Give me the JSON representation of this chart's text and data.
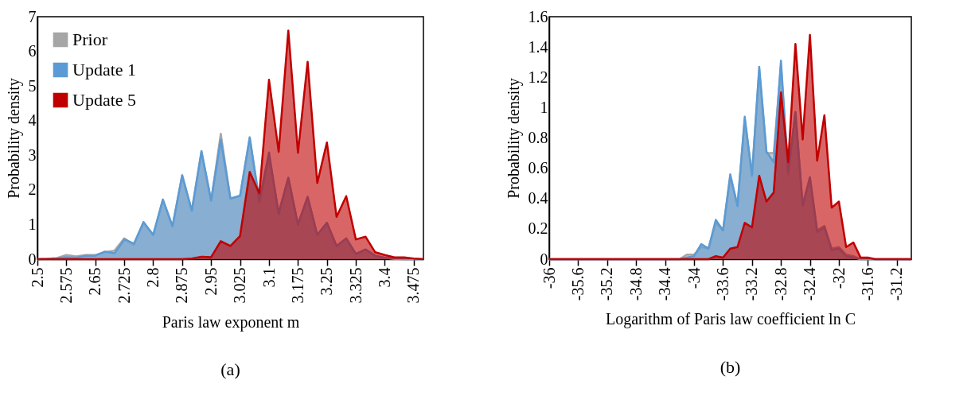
{
  "chart_data": [
    {
      "type": "area",
      "xlabel": "Paris law exponent m",
      "ylabel": "Probability density",
      "annotations": [
        "(a)"
      ],
      "x": [
        2.5,
        2.525,
        2.55,
        2.575,
        2.6,
        2.625,
        2.65,
        2.675,
        2.7,
        2.725,
        2.75,
        2.775,
        2.8,
        2.825,
        2.85,
        2.875,
        2.9,
        2.925,
        2.95,
        2.975,
        3,
        3.025,
        3.05,
        3.075,
        3.1,
        3.125,
        3.15,
        3.175,
        3.2,
        3.225,
        3.25,
        3.275,
        3.3,
        3.325,
        3.35,
        3.375,
        3.4,
        3.425,
        3.45,
        3.475,
        3.5
      ],
      "series": [
        {
          "name": "Prior",
          "color": "#a6a6a6",
          "values": [
            0,
            0.01,
            0.03,
            0.12,
            0.08,
            0.12,
            0.12,
            0.2,
            0.25,
            0.6,
            0.42,
            1.07,
            0.7,
            1.72,
            0.95,
            2.42,
            1.4,
            3.1,
            1.68,
            3.62,
            1.75,
            1.83,
            3.5,
            1.62,
            2.95,
            1.35,
            2.35,
            1.0,
            1.8,
            0.7,
            1.05,
            0.38,
            0.6,
            0.15,
            0.28,
            0.1,
            0.04,
            0.01,
            0,
            0,
            0
          ]
        },
        {
          "name": "Update 1",
          "color": "#5b9bd5",
          "values": [
            0,
            0.01,
            0.03,
            0.06,
            0.04,
            0.1,
            0.1,
            0.22,
            0.17,
            0.57,
            0.45,
            1.07,
            0.7,
            1.72,
            0.95,
            2.42,
            1.4,
            3.12,
            1.7,
            3.45,
            1.75,
            1.83,
            3.52,
            1.7,
            3.08,
            1.3,
            2.35,
            1.0,
            1.8,
            0.7,
            1.05,
            0.38,
            0.6,
            0.15,
            0.28,
            0.1,
            0.04,
            0.01,
            0,
            0,
            0
          ]
        },
        {
          "name": "Update 5",
          "color": "#c00000",
          "values": [
            0,
            0,
            0,
            0,
            0,
            0,
            0,
            0,
            0,
            0,
            0,
            0,
            0,
            0,
            0,
            0,
            0.02,
            0.07,
            0.06,
            0.52,
            0.38,
            0.67,
            2.52,
            1.9,
            5.18,
            3.1,
            6.6,
            3.07,
            5.7,
            2.2,
            3.37,
            1.22,
            1.82,
            0.57,
            0.65,
            0.2,
            0.12,
            0.05,
            0.05,
            0.02,
            0
          ]
        }
      ],
      "xlim": [
        2.5,
        3.5
      ],
      "xticks": [
        2.5,
        2.575,
        2.65,
        2.725,
        2.8,
        2.875,
        2.95,
        3.025,
        3.1,
        3.175,
        3.25,
        3.325,
        3.4,
        3.475
      ],
      "ylim": [
        0,
        7
      ],
      "yticks": [
        0,
        1,
        2,
        3,
        4,
        5,
        6,
        7
      ],
      "legend": "top left"
    },
    {
      "type": "area",
      "xlabel": "Logarithm of Paris law coefficient ln C",
      "ylabel": "Probability density",
      "annotations": [
        "(b)"
      ],
      "x": [
        -36,
        -35.9,
        -35.8,
        -35.7,
        -35.6,
        -35.5,
        -35.4,
        -35.3,
        -35.2,
        -35.1,
        -35,
        -34.9,
        -34.8,
        -34.7,
        -34.6,
        -34.5,
        -34.4,
        -34.3,
        -34.2,
        -34.1,
        -34,
        -33.9,
        -33.8,
        -33.7,
        -33.6,
        -33.5,
        -33.4,
        -33.3,
        -33.2,
        -33.1,
        -33,
        -32.9,
        -32.8,
        -32.7,
        -32.6,
        -32.5,
        -32.4,
        -32.3,
        -32.2,
        -32.1,
        -32,
        -31.9,
        -31.8,
        -31.7,
        -31.6,
        -31.5,
        -31.4,
        -31.3,
        -31.2,
        -31.1,
        -31
      ],
      "series": [
        {
          "name": "Prior",
          "color": "#a6a6a6",
          "values": [
            0,
            0,
            0,
            0,
            0,
            0,
            0,
            0,
            0,
            0,
            0,
            0,
            0,
            0,
            0,
            0,
            0,
            0,
            0,
            0.03,
            0.03,
            0.08,
            0.07,
            0.24,
            0.19,
            0.54,
            0.36,
            0.92,
            0.56,
            1.25,
            0.7,
            0.7,
            1.28,
            0.56,
            0.97,
            0.36,
            0.54,
            0.19,
            0.22,
            0.07,
            0.08,
            0.03,
            0.02,
            0,
            0,
            0,
            0,
            0,
            0,
            0,
            0
          ]
        },
        {
          "name": "Update 1",
          "color": "#5b9bd5",
          "values": [
            0,
            0,
            0,
            0,
            0,
            0,
            0,
            0,
            0,
            0,
            0,
            0,
            0,
            0,
            0,
            0,
            0,
            0,
            0,
            0.01,
            0.02,
            0.1,
            0.07,
            0.26,
            0.19,
            0.56,
            0.35,
            0.94,
            0.55,
            1.27,
            0.71,
            0.64,
            1.31,
            0.57,
            0.97,
            0.35,
            0.54,
            0.18,
            0.21,
            0.06,
            0.07,
            0.02,
            0.01,
            0,
            0,
            0,
            0,
            0,
            0,
            0,
            0
          ]
        },
        {
          "name": "Update 5",
          "color": "#c00000",
          "values": [
            0,
            0,
            0,
            0,
            0,
            0,
            0,
            0,
            0,
            0,
            0,
            0,
            0,
            0,
            0,
            0,
            0,
            0,
            0,
            0,
            0,
            0,
            0,
            0.02,
            0.01,
            0.07,
            0.08,
            0.24,
            0.21,
            0.55,
            0.38,
            0.44,
            1.1,
            0.64,
            1.42,
            0.79,
            1.48,
            0.65,
            0.95,
            0.34,
            0.38,
            0.08,
            0.11,
            0.01,
            0.01,
            0,
            0,
            0,
            0,
            0,
            0
          ]
        }
      ],
      "xlim": [
        -36,
        -31
      ],
      "xticks": [
        -36,
        -35.6,
        -35.2,
        -34.8,
        -34.4,
        -34,
        -33.6,
        -33.2,
        -32.8,
        -32.4,
        -32,
        -31.6,
        -31.2
      ],
      "ylim": [
        0,
        1.6
      ],
      "yticks": [
        0,
        0.2,
        0.4,
        0.6,
        0.8,
        1,
        1.2,
        1.4,
        1.6
      ],
      "legend": "top left"
    }
  ]
}
